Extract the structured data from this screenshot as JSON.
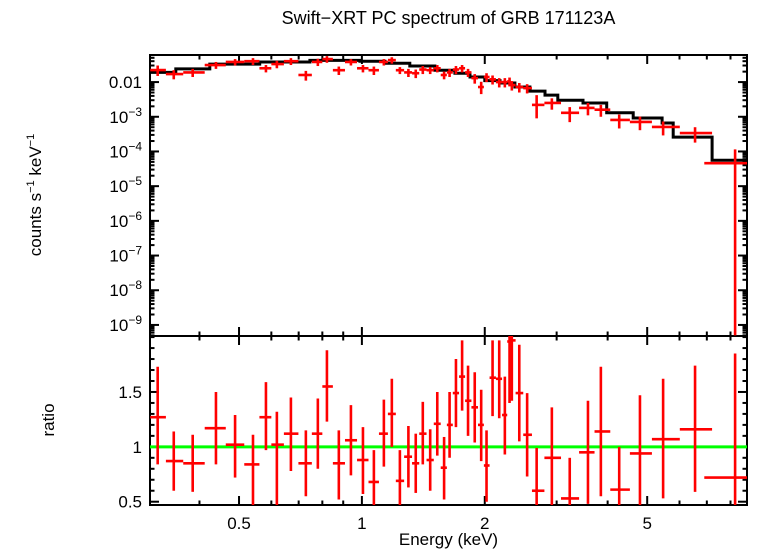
{
  "title": "Swift−XRT PC spectrum of GRB 171123A",
  "colors": {
    "data": "#ff0000",
    "model": "#000000",
    "reference_line": "#00ff00",
    "axes": "#000000",
    "background": "#ffffff"
  },
  "chart_data": {
    "type": "errorbar+step-model, two stacked panels, log x-axis",
    "title": "Swift−XRT PC spectrum of GRB 171123A",
    "xlabel": "Energy (keV)",
    "xscale": "log",
    "xlim": [
      0.3026,
      8.78
    ],
    "xticks_major": [
      0.5,
      1,
      2,
      5
    ],
    "xtick_labels": [
      "0.5",
      "1",
      "2",
      "5"
    ],
    "xticks_minor": [
      0.4,
      0.6,
      0.7,
      0.8,
      0.9,
      3,
      4,
      6,
      7,
      8
    ],
    "legend": "none",
    "grid": "off",
    "top_panel": {
      "ylabel_text": "counts s−1 keV−1 (superscript −1)",
      "ylabel_parts": [
        {
          "t": "counts s"
        },
        {
          "t": "−1",
          "sup": true
        },
        {
          "t": " keV"
        },
        {
          "t": "−1",
          "sup": true
        }
      ],
      "yscale": "log",
      "ylim": [
        4.8e-10,
        0.0603
      ],
      "yticks": [
        {
          "v": 0.01,
          "label": "0.01"
        },
        {
          "v": 0.001,
          "label": "10^−3"
        },
        {
          "v": 0.0001,
          "label": "10^−4"
        },
        {
          "v": 1e-05,
          "label": "10^−5"
        },
        {
          "v": 1e-06,
          "label": "10^−6"
        },
        {
          "v": 1e-07,
          "label": "10^−7"
        },
        {
          "v": 1e-08,
          "label": "10^−8"
        },
        {
          "v": 1e-09,
          "label": "10^−9"
        }
      ],
      "model_steps": [
        [
          0.303,
          0.35,
          0.019
        ],
        [
          0.35,
          0.424,
          0.024
        ],
        [
          0.424,
          0.562,
          0.033
        ],
        [
          0.562,
          0.746,
          0.038
        ],
        [
          0.746,
          0.989,
          0.042
        ],
        [
          0.989,
          1.139,
          0.04
        ],
        [
          1.139,
          1.31,
          0.035
        ],
        [
          1.31,
          1.51,
          0.029
        ],
        [
          1.51,
          1.69,
          0.022
        ],
        [
          1.69,
          1.84,
          0.018
        ],
        [
          1.84,
          2.0,
          0.014
        ],
        [
          2.0,
          2.18,
          0.011
        ],
        [
          2.18,
          2.37,
          0.0094
        ],
        [
          2.37,
          2.58,
          0.0072
        ],
        [
          2.58,
          2.81,
          0.0055
        ],
        [
          2.81,
          3.02,
          0.0042
        ],
        [
          3.02,
          3.48,
          0.003
        ],
        [
          3.48,
          3.98,
          0.0025
        ],
        [
          3.98,
          4.62,
          0.0013
        ],
        [
          4.62,
          5.44,
          0.00092
        ],
        [
          5.44,
          5.79,
          0.00066
        ],
        [
          5.79,
          7.21,
          0.00026
        ],
        [
          7.21,
          8.78,
          5.6e-05
        ]
      ],
      "points": [
        [
          0.303,
          0.316,
          0.331,
          0.0222,
          0.015,
          0.03
        ],
        [
          0.331,
          0.346,
          0.365,
          0.017,
          0.012,
          0.022
        ],
        [
          0.365,
          0.385,
          0.412,
          0.019,
          0.014,
          0.024
        ],
        [
          0.412,
          0.439,
          0.464,
          0.031,
          0.024,
          0.038
        ],
        [
          0.464,
          0.489,
          0.515,
          0.038,
          0.03,
          0.046
        ],
        [
          0.515,
          0.541,
          0.561,
          0.04,
          0.031,
          0.049
        ],
        [
          0.561,
          0.582,
          0.6,
          0.025,
          0.019,
          0.031
        ],
        [
          0.6,
          0.619,
          0.644,
          0.033,
          0.025,
          0.041
        ],
        [
          0.644,
          0.67,
          0.699,
          0.04,
          0.031,
          0.049
        ],
        [
          0.699,
          0.729,
          0.754,
          0.016,
          0.011,
          0.021
        ],
        [
          0.754,
          0.78,
          0.8,
          0.038,
          0.029,
          0.047
        ],
        [
          0.8,
          0.821,
          0.849,
          0.046,
          0.036,
          0.056
        ],
        [
          0.849,
          0.878,
          0.909,
          0.022,
          0.016,
          0.028
        ],
        [
          0.909,
          0.94,
          0.973,
          0.038,
          0.03,
          0.046
        ],
        [
          0.973,
          1.006,
          1.038,
          0.025,
          0.019,
          0.031
        ],
        [
          1.038,
          1.07,
          1.101,
          0.022,
          0.016,
          0.028
        ],
        [
          1.101,
          1.132,
          1.158,
          0.038,
          0.03,
          0.046
        ],
        [
          1.158,
          1.184,
          1.211,
          0.043,
          0.034,
          0.052
        ],
        [
          1.211,
          1.239,
          1.269,
          0.022,
          0.017,
          0.027
        ],
        [
          1.269,
          1.3,
          1.327,
          0.019,
          0.014,
          0.024
        ],
        [
          1.327,
          1.355,
          1.382,
          0.018,
          0.013,
          0.023
        ],
        [
          1.382,
          1.41,
          1.44,
          0.023,
          0.017,
          0.029
        ],
        [
          1.44,
          1.47,
          1.5,
          0.022,
          0.017,
          0.027
        ],
        [
          1.5,
          1.53,
          1.56,
          0.025,
          0.019,
          0.031
        ],
        [
          1.56,
          1.59,
          1.615,
          0.016,
          0.012,
          0.02
        ],
        [
          1.615,
          1.64,
          1.67,
          0.019,
          0.014,
          0.024
        ],
        [
          1.67,
          1.7,
          1.73,
          0.023,
          0.017,
          0.029
        ],
        [
          1.73,
          1.76,
          1.79,
          0.025,
          0.019,
          0.031
        ],
        [
          1.79,
          1.82,
          1.855,
          0.019,
          0.014,
          0.024
        ],
        [
          1.855,
          1.89,
          1.925,
          0.013,
          0.009,
          0.017
        ],
        [
          1.925,
          1.96,
          1.99,
          0.0072,
          0.0045,
          0.0102
        ],
        [
          1.99,
          2.02,
          2.055,
          0.014,
          0.01,
          0.018
        ],
        [
          2.055,
          2.09,
          2.13,
          0.012,
          0.0085,
          0.0155
        ],
        [
          2.13,
          2.17,
          2.205,
          0.01,
          0.007,
          0.013
        ],
        [
          2.205,
          2.24,
          2.27,
          0.01,
          0.007,
          0.013
        ],
        [
          2.27,
          2.3,
          2.315,
          0.0105,
          0.0075,
          0.0135
        ],
        [
          2.315,
          2.33,
          2.38,
          0.0082,
          0.0057,
          0.0107
        ],
        [
          2.38,
          2.43,
          2.485,
          0.0072,
          0.005,
          0.0094
        ],
        [
          2.485,
          2.54,
          2.61,
          0.0067,
          0.0047,
          0.0087
        ],
        [
          2.61,
          2.68,
          2.8,
          0.0022,
          0.0009,
          0.0042
        ],
        [
          2.8,
          2.92,
          3.075,
          0.0025,
          0.0016,
          0.0034
        ],
        [
          3.075,
          3.23,
          3.405,
          0.0013,
          0.0007,
          0.0019
        ],
        [
          3.405,
          3.58,
          3.715,
          0.0018,
          0.0011,
          0.0025
        ],
        [
          3.715,
          3.85,
          4.06,
          0.0016,
          0.001,
          0.0022
        ],
        [
          4.06,
          4.27,
          4.535,
          0.00081,
          0.00046,
          0.00116
        ],
        [
          4.535,
          4.8,
          5.135,
          0.00071,
          0.00041,
          0.00101
        ],
        [
          5.135,
          5.47,
          6.01,
          0.00051,
          0.00029,
          0.00073
        ],
        [
          6.01,
          6.55,
          7.21,
          0.00034,
          0.00018,
          0.0005
        ],
        [
          6.9,
          8.21,
          8.78,
          4.6e-05,
          5e-10,
          0.000115
        ]
      ]
    },
    "ratio_panel": {
      "ylabel": "ratio",
      "yscale": "linear",
      "ylim": [
        0.47,
        2.01
      ],
      "yticks": [
        {
          "v": 0.5,
          "label": "0.5"
        },
        {
          "v": 1,
          "label": "1"
        },
        {
          "v": 1.5,
          "label": "1.5"
        }
      ],
      "yticks_minor_step": 0.1,
      "reference_line_y": 1,
      "points": [
        [
          0.303,
          0.316,
          0.331,
          1.27,
          0.84,
          1.73
        ],
        [
          0.331,
          0.346,
          0.365,
          0.87,
          0.6,
          1.14
        ],
        [
          0.365,
          0.385,
          0.412,
          0.85,
          0.59,
          1.11
        ],
        [
          0.412,
          0.439,
          0.464,
          1.17,
          0.84,
          1.5
        ],
        [
          0.464,
          0.489,
          0.515,
          1.02,
          0.72,
          1.29
        ],
        [
          0.515,
          0.541,
          0.561,
          0.84,
          0.45,
          1.11
        ],
        [
          0.561,
          0.582,
          0.6,
          1.27,
          0.97,
          1.59
        ],
        [
          0.6,
          0.619,
          0.644,
          1.02,
          0.43,
          1.32
        ],
        [
          0.644,
          0.67,
          0.699,
          1.12,
          0.78,
          1.45
        ],
        [
          0.699,
          0.729,
          0.754,
          0.85,
          0.55,
          1.15
        ],
        [
          0.754,
          0.78,
          0.8,
          1.12,
          0.8,
          1.44
        ],
        [
          0.8,
          0.821,
          0.849,
          1.55,
          1.23,
          1.88
        ],
        [
          0.849,
          0.878,
          0.909,
          0.85,
          0.52,
          1.15
        ],
        [
          0.909,
          0.94,
          0.973,
          1.06,
          0.74,
          1.38
        ],
        [
          0.973,
          1.006,
          1.038,
          0.88,
          0.57,
          1.18
        ],
        [
          1.038,
          1.07,
          1.101,
          0.68,
          0.38,
          0.97
        ],
        [
          1.101,
          1.132,
          1.158,
          1.12,
          0.82,
          1.43
        ],
        [
          1.158,
          1.184,
          1.211,
          1.3,
          1.0,
          1.62
        ],
        [
          1.211,
          1.239,
          1.269,
          0.69,
          0.41,
          0.97
        ],
        [
          1.269,
          1.3,
          1.327,
          0.91,
          0.63,
          1.19
        ],
        [
          1.327,
          1.355,
          1.382,
          0.85,
          0.58,
          1.12
        ],
        [
          1.382,
          1.41,
          1.44,
          1.12,
          0.84,
          1.41
        ],
        [
          1.44,
          1.47,
          1.5,
          0.88,
          0.6,
          1.16
        ],
        [
          1.5,
          1.53,
          1.56,
          1.21,
          0.92,
          1.5
        ],
        [
          1.56,
          1.59,
          1.615,
          0.81,
          0.52,
          1.09
        ],
        [
          1.615,
          1.64,
          1.67,
          1.2,
          0.9,
          1.5
        ],
        [
          1.67,
          1.7,
          1.73,
          1.49,
          1.18,
          1.8
        ],
        [
          1.73,
          1.76,
          1.79,
          1.64,
          1.33,
          1.97
        ],
        [
          1.79,
          1.82,
          1.855,
          1.42,
          1.1,
          1.74
        ],
        [
          1.855,
          1.89,
          1.925,
          1.36,
          1.04,
          1.68
        ],
        [
          1.925,
          1.96,
          1.99,
          1.2,
          0.87,
          1.52
        ],
        [
          1.99,
          2.02,
          2.055,
          0.83,
          0.5,
          1.15
        ],
        [
          2.055,
          2.09,
          2.13,
          1.63,
          1.28,
          1.97
        ],
        [
          2.13,
          2.17,
          2.205,
          1.62,
          1.26,
          1.97
        ],
        [
          2.205,
          2.24,
          2.27,
          1.29,
          0.93,
          1.64
        ],
        [
          2.27,
          2.3,
          2.315,
          1.96,
          1.4,
          2.3
        ],
        [
          2.315,
          2.33,
          2.38,
          1.97,
          1.42,
          2.3
        ],
        [
          2.38,
          2.43,
          2.485,
          1.49,
          1.05,
          1.93
        ],
        [
          2.485,
          2.54,
          2.61,
          1.11,
          0.73,
          1.49
        ],
        [
          2.61,
          2.68,
          2.8,
          0.6,
          0.2,
          0.99
        ],
        [
          2.8,
          2.92,
          3.075,
          0.9,
          0.45,
          1.36
        ],
        [
          3.075,
          3.23,
          3.405,
          0.53,
          0.15,
          0.9
        ],
        [
          3.405,
          3.58,
          3.715,
          0.95,
          0.48,
          1.42
        ],
        [
          3.715,
          3.85,
          4.06,
          1.14,
          0.55,
          1.73
        ],
        [
          4.06,
          4.27,
          4.535,
          0.61,
          0.2,
          1.0
        ],
        [
          4.535,
          4.8,
          5.135,
          0.94,
          0.42,
          1.47
        ],
        [
          5.135,
          5.47,
          6.01,
          1.07,
          0.53,
          1.62
        ],
        [
          6.01,
          6.55,
          7.21,
          1.16,
          0.59,
          1.74
        ],
        [
          6.9,
          8.21,
          8.78,
          0.72,
          0.05,
          1.85
        ]
      ]
    }
  }
}
